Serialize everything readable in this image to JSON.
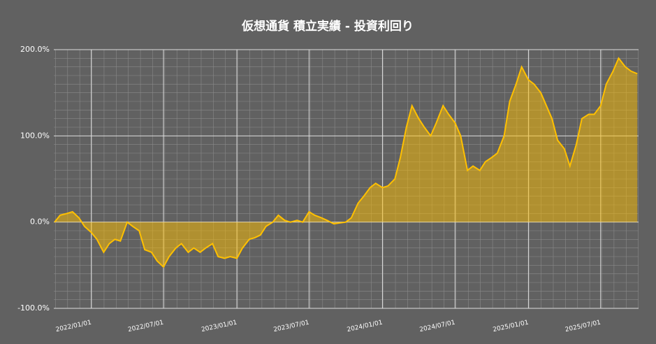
{
  "chart_data": {
    "type": "area",
    "title": "仮想通貨 積立実績 - 投資利回り",
    "x": [
      "2021/10/01",
      "2021/10/15",
      "2021/11/01",
      "2021/11/15",
      "2021/12/01",
      "2021/12/15",
      "2022/01/01",
      "2022/01/15",
      "2022/02/01",
      "2022/02/15",
      "2022/03/01",
      "2022/03/15",
      "2022/04/01",
      "2022/04/15",
      "2022/05/01",
      "2022/05/15",
      "2022/06/01",
      "2022/06/15",
      "2022/07/01",
      "2022/07/15",
      "2022/08/01",
      "2022/08/15",
      "2022/09/01",
      "2022/09/15",
      "2022/10/01",
      "2022/10/15",
      "2022/11/01",
      "2022/11/15",
      "2022/12/01",
      "2022/12/15",
      "2023/01/01",
      "2023/01/15",
      "2023/02/01",
      "2023/02/15",
      "2023/03/01",
      "2023/03/15",
      "2023/04/01",
      "2023/04/15",
      "2023/05/01",
      "2023/05/15",
      "2023/06/01",
      "2023/06/15",
      "2023/07/01",
      "2023/07/15",
      "2023/08/01",
      "2023/08/15",
      "2023/09/01",
      "2023/09/15",
      "2023/10/01",
      "2023/10/15",
      "2023/11/01",
      "2023/11/15",
      "2023/12/01",
      "2023/12/15",
      "2024/01/01",
      "2024/01/15",
      "2024/02/01",
      "2024/02/15",
      "2024/03/01",
      "2024/03/15",
      "2024/04/01",
      "2024/04/15",
      "2024/05/01",
      "2024/05/15",
      "2024/06/01",
      "2024/06/15",
      "2024/07/01",
      "2024/07/15",
      "2024/08/01",
      "2024/08/15",
      "2024/09/01",
      "2024/09/15",
      "2024/10/01",
      "2024/10/15",
      "2024/11/01",
      "2024/11/15",
      "2024/12/01",
      "2024/12/15",
      "2025/01/01",
      "2025/01/15",
      "2025/02/01",
      "2025/02/15",
      "2025/03/01",
      "2025/03/15",
      "2025/04/01",
      "2025/04/15",
      "2025/05/01",
      "2025/05/15",
      "2025/06/01",
      "2025/06/15",
      "2025/07/01",
      "2025/07/15",
      "2025/08/01",
      "2025/08/15",
      "2025/09/01",
      "2025/09/15",
      "2025/10/01"
    ],
    "series": [
      {
        "name": "投資利回り",
        "color": "#ffc000",
        "values": [
          0,
          8,
          10,
          12,
          5,
          -5,
          -12,
          -20,
          -35,
          -25,
          -20,
          -22,
          0,
          -5,
          -10,
          -32,
          -35,
          -45,
          -52,
          -40,
          -30,
          -25,
          -35,
          -30,
          -35,
          -30,
          -25,
          -40,
          -42,
          -40,
          -42,
          -30,
          -20,
          -18,
          -15,
          -5,
          0,
          8,
          2,
          0,
          2,
          0,
          12,
          8,
          5,
          2,
          -2,
          -1,
          0,
          5,
          22,
          30,
          40,
          45,
          40,
          42,
          50,
          75,
          110,
          135,
          120,
          110,
          100,
          115,
          135,
          125,
          115,
          100,
          60,
          65,
          60,
          70,
          75,
          80,
          100,
          140,
          160,
          180,
          165,
          160,
          150,
          135,
          120,
          95,
          85,
          65,
          90,
          120,
          125,
          125,
          135,
          160,
          175,
          190,
          180,
          175,
          172
        ]
      }
    ],
    "xlim": [
      "2021/09/29",
      "2025/10/04"
    ],
    "xticks": [
      "2022/01/01",
      "2022/07/01",
      "2023/01/01",
      "2023/07/01",
      "2024/01/01",
      "2024/07/01",
      "2025/01/01",
      "2025/07/01"
    ],
    "ylim": [
      -100,
      200
    ],
    "yticks": [
      {
        "value": -100,
        "label": "-100.0%"
      },
      {
        "value": 0,
        "label": "0.0%"
      },
      {
        "value": 100,
        "label": "100.0%"
      },
      {
        "value": 200,
        "label": "200.0%"
      }
    ],
    "grid": true
  }
}
